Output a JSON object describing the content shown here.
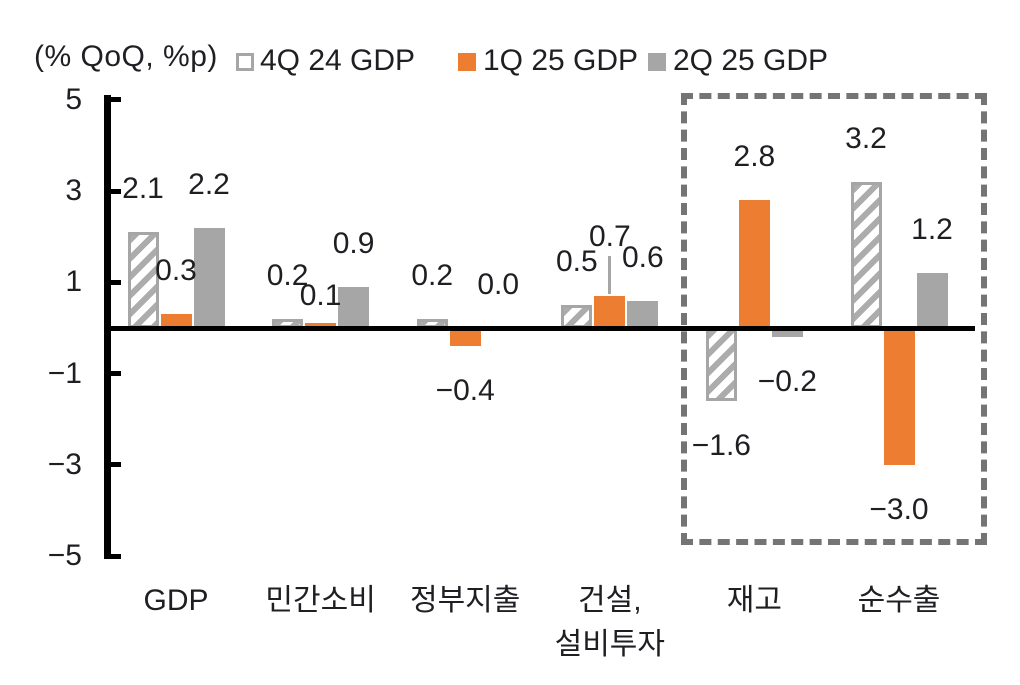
{
  "chart": {
    "legend": [
      {
        "label": "4Q 24 GDP",
        "swatch_style": "hatched",
        "swatch_color": "#a6a6a6"
      },
      {
        "label": "1Q 25 GDP",
        "swatch_style": "solid",
        "swatch_color": "#ED7D31"
      },
      {
        "label": "2Q 25 GDP",
        "swatch_style": "solid",
        "swatch_color": "#a6a6a6"
      }
    ]
  },
  "chart_data": {
    "type": "bar",
    "title": "",
    "unit_label": "(% QoQ, %p)",
    "categories": [
      "GDP",
      "민간소비",
      "정부지출",
      "건설,\n설비투자",
      "재고",
      "순수출"
    ],
    "series": [
      {
        "name": "4Q 24 GDP",
        "style": "hatched",
        "color": "#a6a6a6",
        "values": [
          2.1,
          0.2,
          0.2,
          0.5,
          -1.6,
          3.2
        ]
      },
      {
        "name": "1Q 25 GDP",
        "style": "solid",
        "color": "#ED7D31",
        "values": [
          0.3,
          0.1,
          -0.4,
          0.7,
          2.8,
          -3.0
        ]
      },
      {
        "name": "2Q 25 GDP",
        "style": "solid",
        "color": "#a6a6a6",
        "values": [
          2.2,
          0.9,
          0.0,
          0.6,
          -0.2,
          1.2
        ]
      }
    ],
    "data_labels": true,
    "ylim": [
      -5,
      5
    ],
    "yticks": [
      5,
      3,
      1,
      -1,
      -3,
      -5
    ],
    "grid": false,
    "legend_position": "top",
    "axis_color": "#000000",
    "text_color": "#1f1f23",
    "highlight_box_categories": [
      "재고",
      "순수출"
    ],
    "highlight_box_color": "#747474",
    "leader_line": {
      "series_index": 1,
      "category_index": 3
    }
  }
}
